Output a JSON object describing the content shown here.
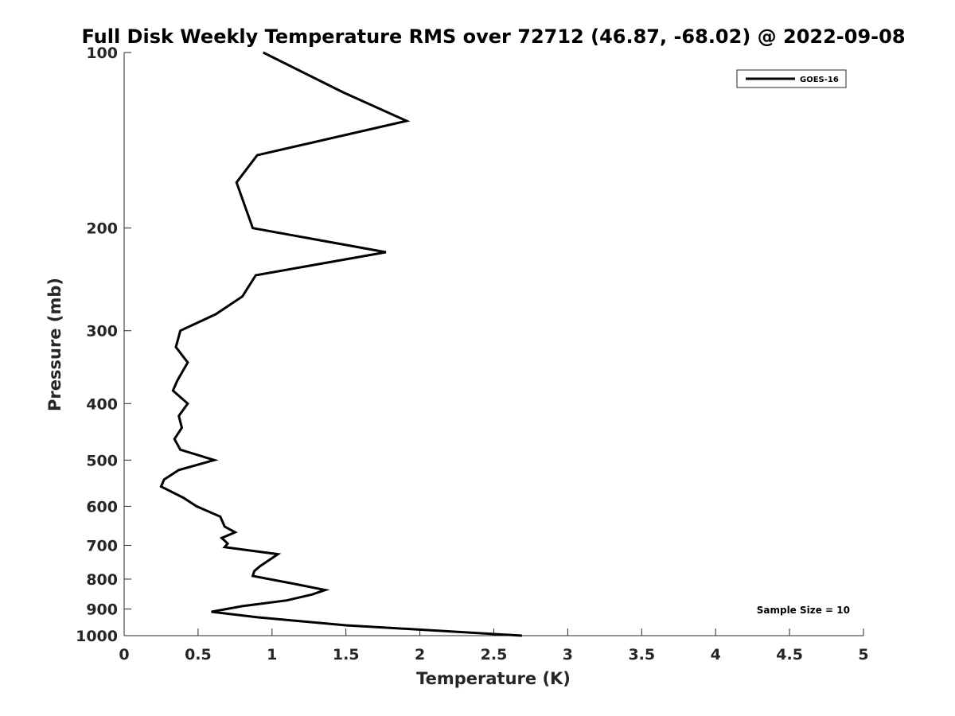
{
  "chart_data": {
    "type": "line",
    "title": "Full Disk Weekly Temperature RMS over 72712 (46.87, -68.02) @ 2022-09-08",
    "xlabel": "Temperature (K)",
    "ylabel": "Pressure (mb)",
    "xlim": [
      0,
      5
    ],
    "ylim": [
      100,
      1000
    ],
    "y_scale": "log",
    "y_reversed": true,
    "xticks": [
      0,
      0.5,
      1,
      1.5,
      2,
      2.5,
      3,
      3.5,
      4,
      4.5,
      5
    ],
    "xtick_labels": [
      "0",
      "0.5",
      "1",
      "1.5",
      "2",
      "2.5",
      "3",
      "3.5",
      "4",
      "4.5",
      "5"
    ],
    "yticks": [
      100,
      200,
      300,
      400,
      500,
      600,
      700,
      800,
      900,
      1000
    ],
    "ytick_labels": [
      "100",
      "200",
      "300",
      "400",
      "500",
      "600",
      "700",
      "800",
      "900",
      "1000"
    ],
    "grid": false,
    "legend_position": "top-right",
    "series": [
      {
        "name": "GOES-16",
        "color": "#000000",
        "points": [
          [
            0.94,
            100
          ],
          [
            1.48,
            117
          ],
          [
            1.91,
            131
          ],
          [
            0.9,
            150
          ],
          [
            0.76,
            167
          ],
          [
            0.87,
            200
          ],
          [
            1.77,
            220
          ],
          [
            0.89,
            241
          ],
          [
            0.8,
            262
          ],
          [
            0.62,
            281
          ],
          [
            0.38,
            300
          ],
          [
            0.35,
            320
          ],
          [
            0.43,
            340
          ],
          [
            0.36,
            365
          ],
          [
            0.33,
            380
          ],
          [
            0.43,
            400
          ],
          [
            0.37,
            420
          ],
          [
            0.39,
            440
          ],
          [
            0.34,
            460
          ],
          [
            0.38,
            480
          ],
          [
            0.61,
            500
          ],
          [
            0.37,
            520
          ],
          [
            0.27,
            540
          ],
          [
            0.25,
            555
          ],
          [
            0.4,
            580
          ],
          [
            0.49,
            600
          ],
          [
            0.65,
            625
          ],
          [
            0.68,
            650
          ],
          [
            0.75,
            665
          ],
          [
            0.66,
            680
          ],
          [
            0.7,
            695
          ],
          [
            0.68,
            705
          ],
          [
            1.04,
            725
          ],
          [
            0.92,
            760
          ],
          [
            0.88,
            775
          ],
          [
            0.87,
            790
          ],
          [
            1.15,
            815
          ],
          [
            1.36,
            835
          ],
          [
            1.27,
            850
          ],
          [
            1.1,
            870
          ],
          [
            0.8,
            890
          ],
          [
            0.59,
            910
          ],
          [
            0.9,
            930
          ],
          [
            1.5,
            960
          ],
          [
            2.69,
            1000
          ]
        ]
      }
    ],
    "annotation": "Sample Size = 10"
  }
}
